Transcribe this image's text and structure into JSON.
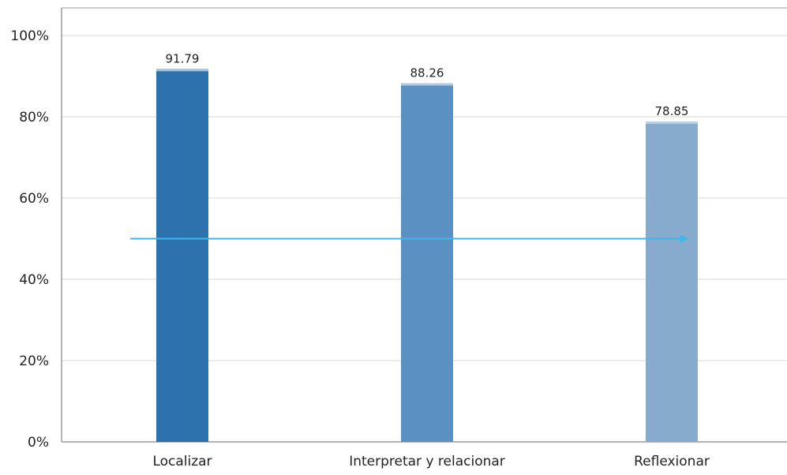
{
  "chart_data": {
    "type": "bar",
    "categories": [
      "Localizar",
      "Interpretar y relacionar",
      "Reflexionar"
    ],
    "values": [
      91.79,
      88.26,
      78.85
    ],
    "data_labels": [
      "91.79",
      "88.26",
      "78.85"
    ],
    "bar_colors": [
      "#2e72ad",
      "#5a91c2",
      "#86abcd"
    ],
    "ylim": [
      0,
      100
    ],
    "yticks": [
      0,
      20,
      40,
      60,
      80,
      100
    ],
    "ytick_labels": [
      "0%",
      "20%",
      "40%",
      "60%",
      "80%",
      "100%"
    ],
    "grid": true,
    "gridline_color": "#ebebeb",
    "axis_color": "#9a9a9a",
    "trend_arrow": {
      "from_category": "Localizar",
      "to_category": "Reflexionar",
      "y": 50,
      "color": "#3fb5ea"
    },
    "title": "",
    "xlabel": "",
    "ylabel": ""
  }
}
